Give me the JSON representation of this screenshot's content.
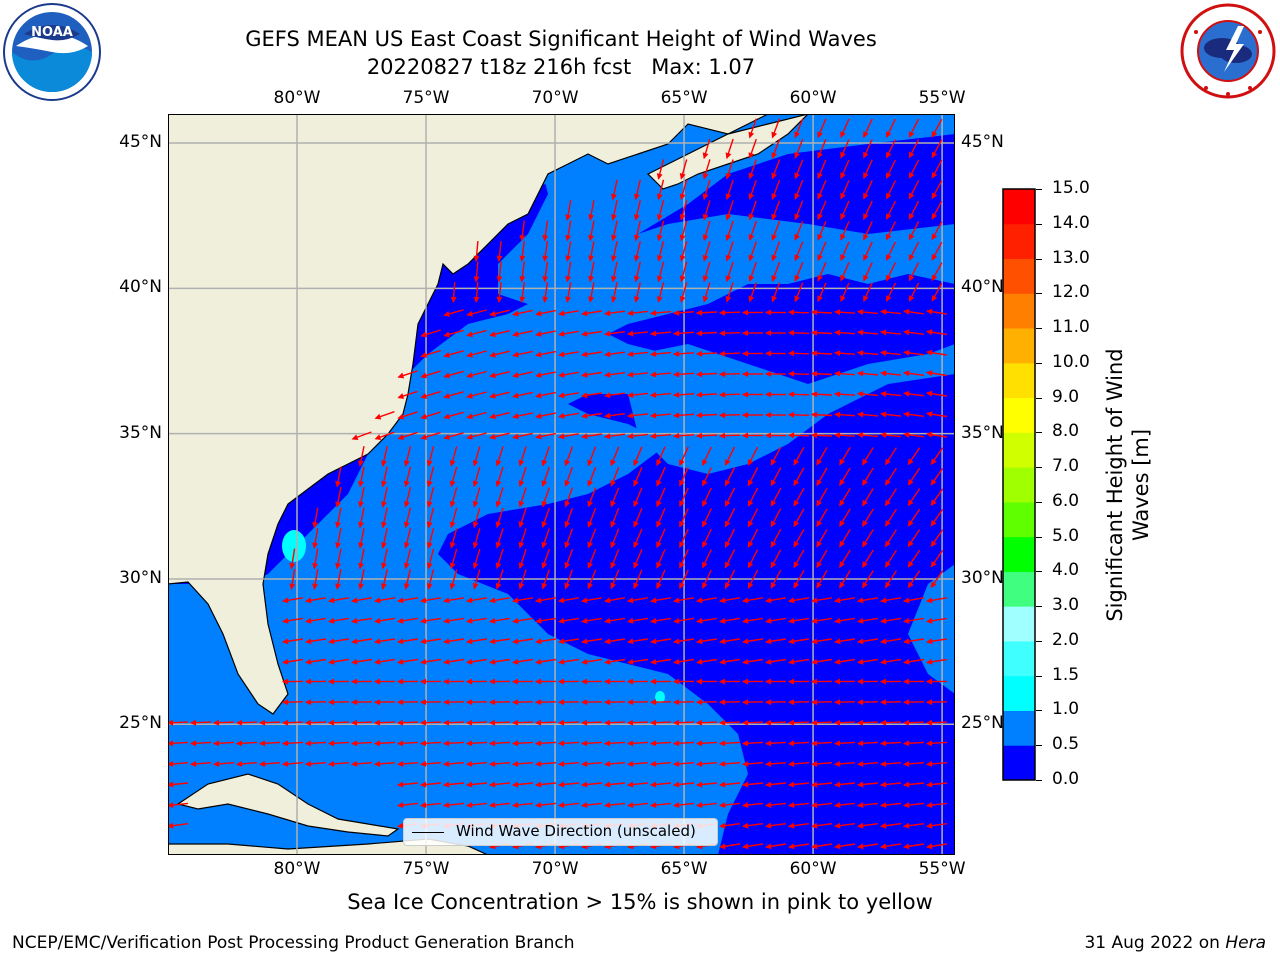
{
  "header": {
    "title_line1": "GEFS MEAN US East Coast Significant Height of Wind Waves",
    "title_line2": "20220827 t18z 216h fcst   Max: 1.07"
  },
  "logos": {
    "left": {
      "icon": "noaa-logo-icon",
      "text": "NOAA"
    },
    "right": {
      "icon": "national-weather-service-logo-icon"
    }
  },
  "map": {
    "lon_ticks": [
      "80°W",
      "75°W",
      "70°W",
      "65°W",
      "60°W",
      "55°W"
    ],
    "lat_ticks": [
      "45°N",
      "40°N",
      "35°N",
      "30°N",
      "25°N"
    ],
    "lon_range": [
      -85,
      -54.5
    ],
    "lat_range": [
      20.5,
      46
    ],
    "grid": true,
    "colors": {
      "land": "#efefdc",
      "ocean_low": "#0000ff",
      "ocean_mid": "#0080ff",
      "ocean_high": "#00ffff",
      "arrows": "#ff0000",
      "grid": "#b0b0b0"
    },
    "legend": {
      "label": "Wind Wave Direction (unscaled)",
      "placement": "lower center"
    }
  },
  "colorbar": {
    "label": "Significant Height of Wind Waves [m]",
    "label_line1": "Significant Height of Wind",
    "label_line2": "Waves [m]",
    "ticks": [
      "15.0",
      "14.0",
      "13.0",
      "12.0",
      "11.0",
      "10.0",
      "9.0",
      "8.0",
      "7.0",
      "6.0",
      "5.0",
      "4.0",
      "3.0",
      "2.0",
      "1.5",
      "1.0",
      "0.5",
      "0.0"
    ],
    "colors": [
      "#0000ff",
      "#0080ff",
      "#00ffff",
      "#40ffff",
      "#a0ffff",
      "#40ff80",
      "#00ff00",
      "#60ff00",
      "#a0ff00",
      "#d0ff00",
      "#ffff00",
      "#ffe000",
      "#ffb000",
      "#ff8000",
      "#ff5000",
      "#ff2000",
      "#ff0000"
    ]
  },
  "caption": "Sea Ice Concentration > 15% is shown in pink to yellow",
  "footer": {
    "left": "NCEP/EMC/Verification Post Processing Product Generation Branch",
    "right_date": "31 Aug 2022 on ",
    "right_host": "Hera"
  }
}
